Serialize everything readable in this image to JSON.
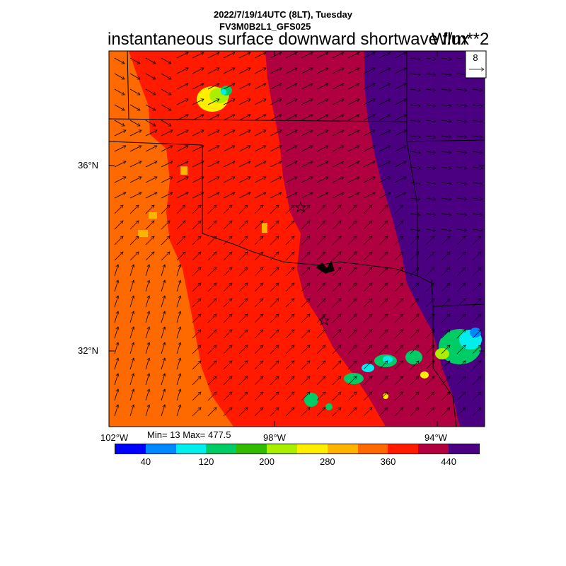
{
  "header": {
    "line1": "2022/7/19/14UTC (8LT), Tuesday",
    "line2": "FV3M0B2L1_GFS025",
    "title": "instantaneous surface downward shortwave flux",
    "units": "W/m**2"
  },
  "vector_ref": {
    "value": "8"
  },
  "axes": {
    "lat_labels": [
      "36°N",
      "32°N"
    ],
    "lon_labels": [
      "102°W",
      "98°W",
      "94°W"
    ]
  },
  "stats": {
    "minmax": "Min= 13 Max= 477.5"
  },
  "colorbar": {
    "colors": [
      "#0000ff",
      "#0088ff",
      "#00eeee",
      "#00cc66",
      "#33bb00",
      "#aaee00",
      "#ffee00",
      "#ffb400",
      "#ff6a00",
      "#ff1a00",
      "#b00040",
      "#4b0082"
    ],
    "labels": [
      "40",
      "120",
      "200",
      "280",
      "360",
      "440"
    ]
  },
  "map_colors": {
    "orange": "#ff6a00",
    "red": "#ff1a00",
    "crimson": "#b00040",
    "purple": "#4b0082"
  }
}
